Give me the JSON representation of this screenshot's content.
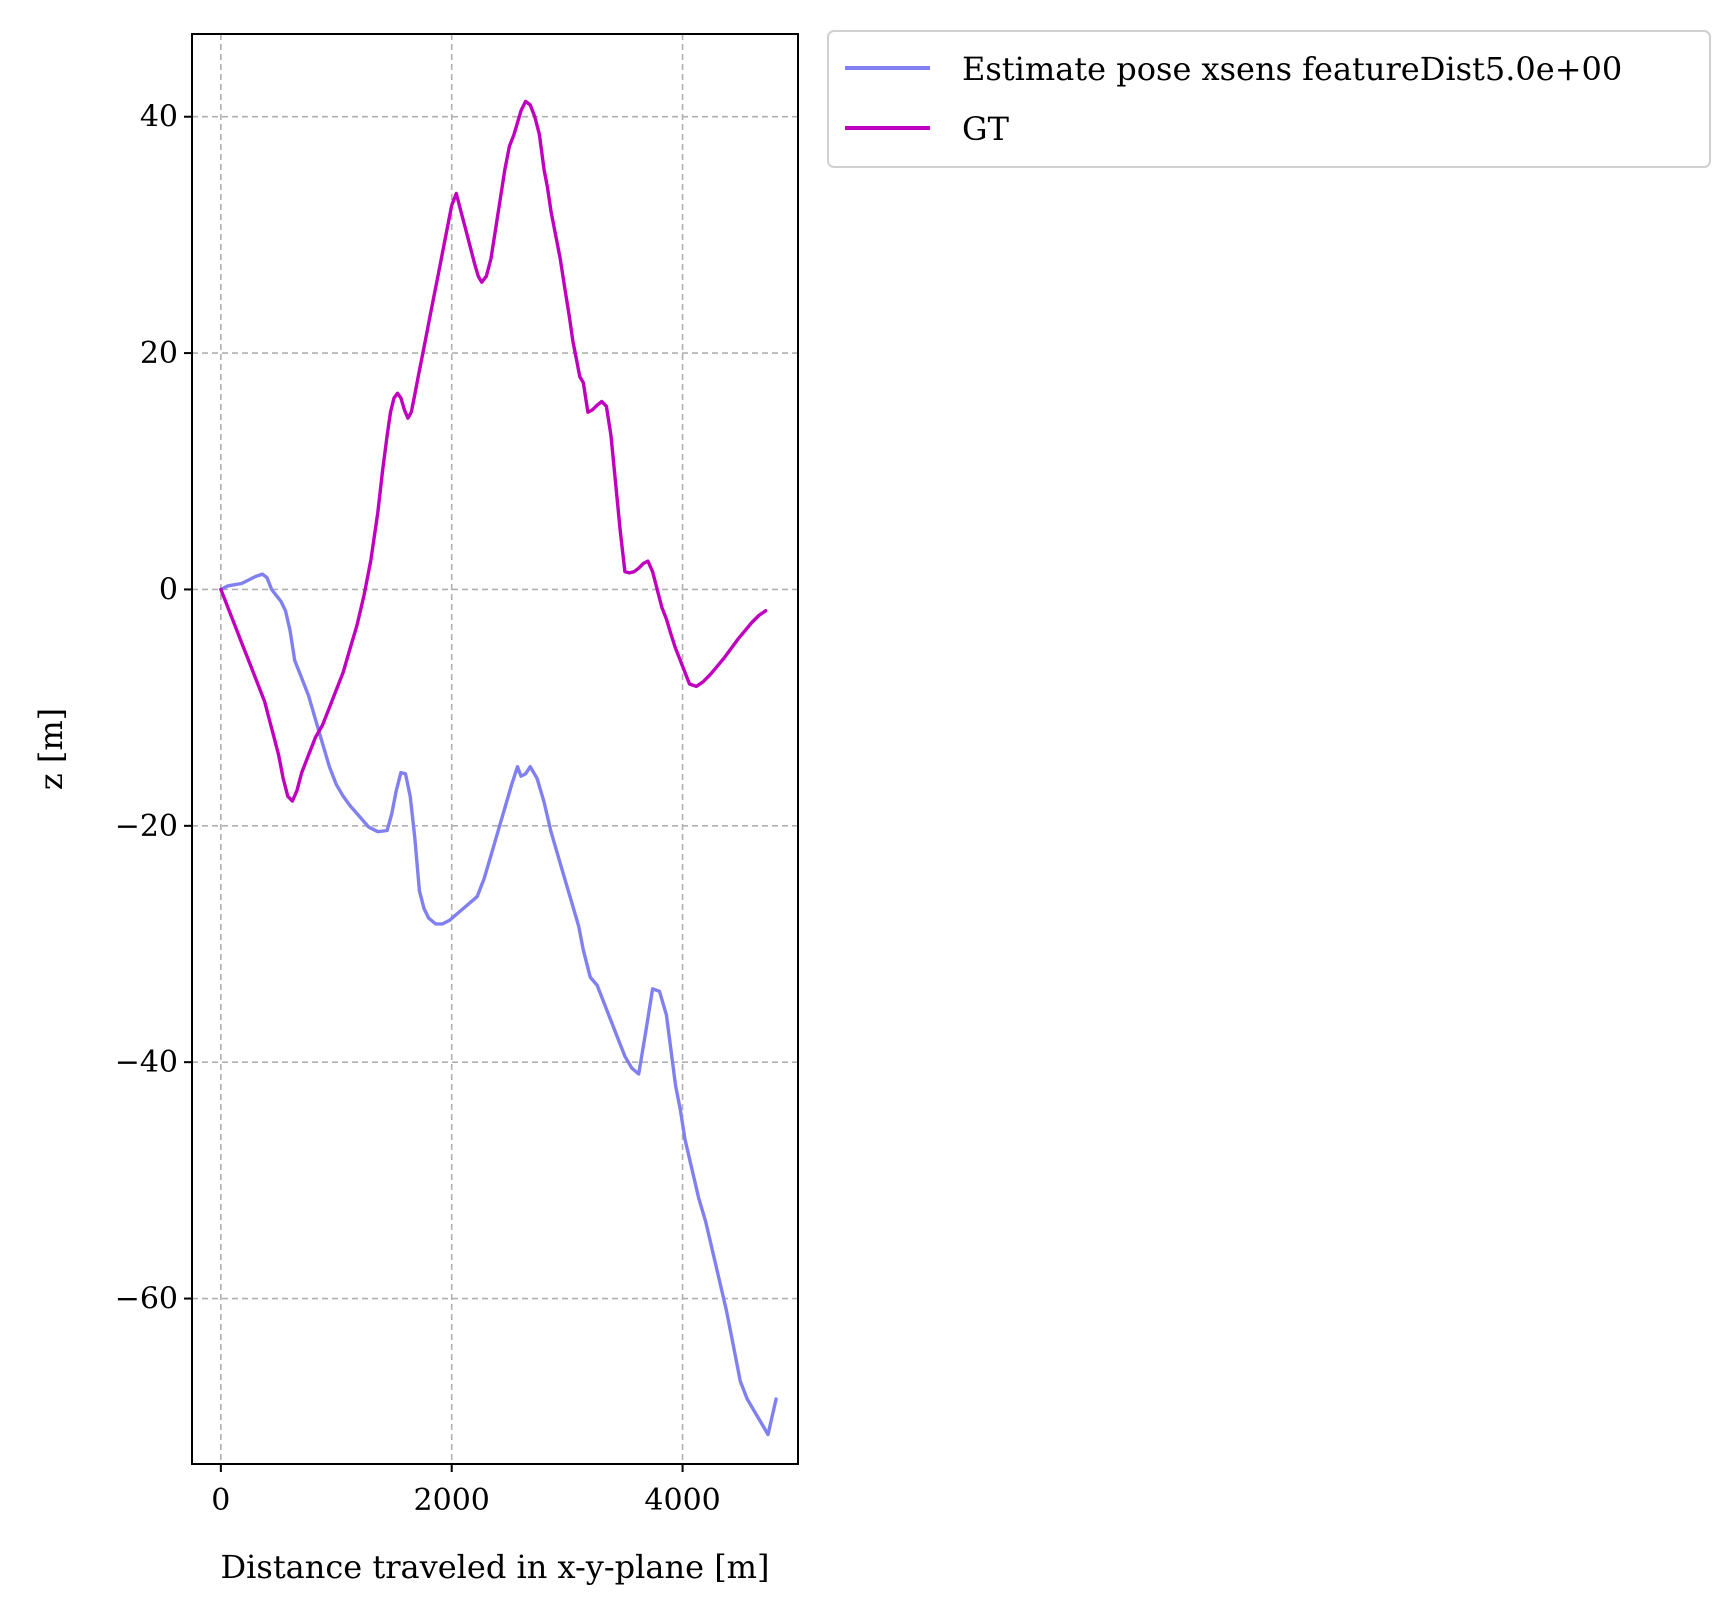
{
  "chart_data": {
    "type": "line",
    "title": "",
    "xlabel": "Distance traveled in x-y-plane [m]",
    "ylabel": "z [m]",
    "xlim": [
      -250,
      5000
    ],
    "ylim": [
      -74,
      47
    ],
    "xticks": [
      0,
      2000,
      4000
    ],
    "yticks": [
      40,
      20,
      0,
      -20,
      -40,
      -60
    ],
    "xtick_labels": [
      "0",
      "2000",
      "4000"
    ],
    "ytick_labels": [
      "40",
      "20",
      "0",
      "−20",
      "−40",
      "−60"
    ],
    "grid": true,
    "legend_position": "outside-top-right",
    "series": [
      {
        "name": "Estimate pose xsens featureDist5.0e+00",
        "color": "#8080f0",
        "x": [
          0,
          60,
          120,
          180,
          240,
          300,
          360,
          400,
          440,
          480,
          520,
          560,
          600,
          640,
          700,
          760,
          820,
          880,
          940,
          1000,
          1060,
          1120,
          1200,
          1280,
          1360,
          1440,
          1480,
          1520,
          1560,
          1600,
          1640,
          1680,
          1720,
          1760,
          1800,
          1860,
          1920,
          1980,
          2040,
          2100,
          2160,
          2220,
          2280,
          2340,
          2400,
          2460,
          2520,
          2570,
          2600,
          2640,
          2680,
          2740,
          2800,
          2860,
          2920,
          2980,
          3040,
          3100,
          3140,
          3200,
          3260,
          3320,
          3380,
          3440,
          3500,
          3560,
          3620,
          3680,
          3740,
          3800,
          3860,
          3900,
          3940,
          3980,
          4020,
          4080,
          4140,
          4200,
          4260,
          4320,
          4380,
          4440,
          4500,
          4560,
          4620,
          4680,
          4740,
          4810
        ],
        "y": [
          0,
          0.3,
          0.4,
          0.5,
          0.8,
          1.1,
          1.3,
          1.0,
          0.0,
          -0.5,
          -1.0,
          -1.8,
          -3.5,
          -6.0,
          -7.5,
          -9.0,
          -11.0,
          -13.0,
          -15.0,
          -16.5,
          -17.5,
          -18.3,
          -19.2,
          -20.1,
          -20.5,
          -20.4,
          -19.0,
          -17.0,
          -15.5,
          -15.6,
          -17.5,
          -21.0,
          -25.5,
          -27.0,
          -27.8,
          -28.3,
          -28.3,
          -28.0,
          -27.5,
          -27.0,
          -26.5,
          -26.0,
          -24.5,
          -22.5,
          -20.5,
          -18.5,
          -16.5,
          -15.0,
          -15.8,
          -15.6,
          -15.0,
          -16.0,
          -18.0,
          -20.5,
          -22.5,
          -24.5,
          -26.5,
          -28.5,
          -30.5,
          -32.8,
          -33.5,
          -35.0,
          -36.5,
          -38.0,
          -39.5,
          -40.5,
          -41.0,
          -37.5,
          -33.8,
          -34.0,
          -36.0,
          -39.0,
          -42.0,
          -44.0,
          -46.5,
          -49.0,
          -51.5,
          -53.5,
          -56.0,
          -58.5,
          -61.0,
          -64.0,
          -67.0,
          -68.5,
          -69.5,
          -70.5,
          -71.5,
          -68.5
        ]
      },
      {
        "name": "GT",
        "color": "#bf00bf",
        "x": [
          0,
          40,
          80,
          120,
          160,
          200,
          260,
          320,
          380,
          420,
          460,
          500,
          540,
          580,
          620,
          660,
          700,
          760,
          820,
          880,
          940,
          1000,
          1060,
          1120,
          1180,
          1240,
          1300,
          1360,
          1400,
          1440,
          1470,
          1500,
          1530,
          1560,
          1590,
          1620,
          1650,
          1680,
          1710,
          1740,
          1770,
          1800,
          1840,
          1880,
          1920,
          1960,
          2000,
          2040,
          2080,
          2120,
          2160,
          2200,
          2230,
          2260,
          2300,
          2340,
          2380,
          2420,
          2460,
          2500,
          2540,
          2570,
          2600,
          2640,
          2680,
          2720,
          2760,
          2800,
          2830,
          2860,
          2900,
          2940,
          2980,
          3020,
          3050,
          3080,
          3110,
          3140,
          3180,
          3220,
          3260,
          3300,
          3340,
          3380,
          3420,
          3460,
          3500,
          3540,
          3580,
          3620,
          3660,
          3700,
          3740,
          3780,
          3820,
          3860,
          3900,
          3940,
          3980,
          4020,
          4060,
          4120,
          4180,
          4240,
          4300,
          4360,
          4420,
          4480,
          4540,
          4600,
          4660,
          4720
        ],
        "y": [
          0,
          -1.0,
          -2.0,
          -3.0,
          -4.0,
          -5.0,
          -6.5,
          -8.0,
          -9.5,
          -11.0,
          -12.5,
          -14.0,
          -16.0,
          -17.5,
          -17.9,
          -17.0,
          -15.5,
          -14.0,
          -12.5,
          -11.5,
          -10.0,
          -8.5,
          -7.0,
          -5.0,
          -3.0,
          -0.5,
          2.5,
          6.5,
          10.0,
          13.0,
          15.0,
          16.2,
          16.6,
          16.2,
          15.2,
          14.5,
          15.0,
          16.5,
          18.0,
          19.5,
          21.0,
          22.5,
          24.5,
          26.5,
          28.5,
          30.5,
          32.5,
          33.5,
          32.0,
          30.5,
          29.0,
          27.5,
          26.5,
          26.0,
          26.5,
          28.0,
          30.5,
          33.0,
          35.5,
          37.5,
          38.5,
          39.5,
          40.5,
          41.3,
          41.0,
          40.0,
          38.5,
          35.5,
          34.0,
          32.0,
          30.0,
          28.0,
          25.5,
          23.0,
          21.0,
          19.5,
          18.0,
          17.5,
          15.0,
          15.2,
          15.6,
          15.9,
          15.5,
          13.0,
          9.0,
          5.0,
          1.5,
          1.4,
          1.5,
          1.8,
          2.2,
          2.4,
          1.5,
          0.0,
          -1.5,
          -2.5,
          -3.8,
          -5.0,
          -6.0,
          -7.0,
          -8.0,
          -8.2,
          -7.8,
          -7.2,
          -6.5,
          -5.8,
          -5.0,
          -4.2,
          -3.5,
          -2.8,
          -2.2,
          -1.8
        ]
      }
    ]
  }
}
